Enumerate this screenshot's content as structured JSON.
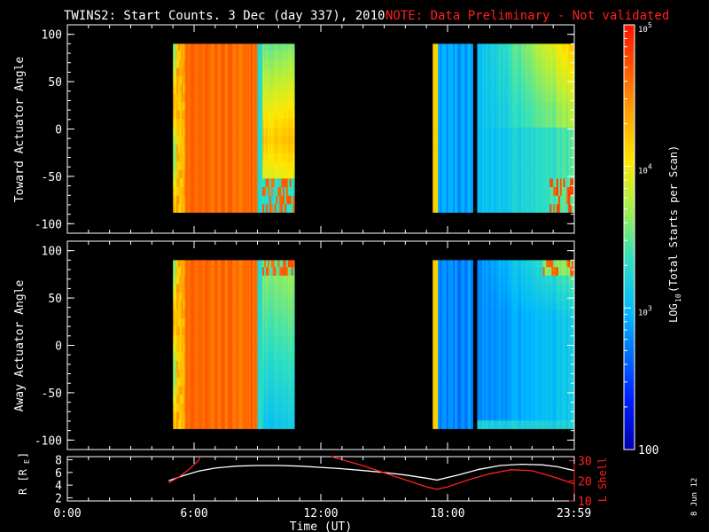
{
  "header": {
    "title": "TWINS2: Start Counts.  3 Dec (day 337), 2010",
    "note": "NOTE: Data Preliminary - Not validated"
  },
  "footer_date": "8 Jun 12",
  "colors": {
    "background": "#000000",
    "axes": "#ffffff",
    "note": "#ff2020",
    "r_line": "#ffffff",
    "lshell_line": "#ff2020"
  },
  "chart_data": [
    {
      "type": "heatmap",
      "id": "toward",
      "ylabel": "Toward Actuator Angle",
      "ylim": [
        -110,
        110
      ],
      "yticks": [
        {
          "value": 100,
          "label": "100"
        },
        {
          "value": 50,
          "label": "50"
        },
        {
          "value": 0,
          "label": "0"
        },
        {
          "value": -50,
          "label": "-50"
        },
        {
          "value": -100,
          "label": "-100"
        }
      ],
      "xlim_hours": [
        0,
        24
      ],
      "angle_range": [
        -88,
        90
      ],
      "data_segments_hours": [
        [
          5.0,
          10.75
        ],
        [
          17.3,
          19.2
        ],
        [
          19.4,
          24.0
        ]
      ]
    },
    {
      "type": "heatmap",
      "id": "away",
      "ylabel": "Away Actuator Angle",
      "ylim": [
        -110,
        110
      ],
      "yticks": [
        {
          "value": 100,
          "label": "100"
        },
        {
          "value": 50,
          "label": "50"
        },
        {
          "value": 0,
          "label": "0"
        },
        {
          "value": -50,
          "label": "-50"
        },
        {
          "value": -100,
          "label": "-100"
        }
      ],
      "xlim_hours": [
        0,
        24
      ],
      "angle_range": [
        -88,
        90
      ],
      "data_segments_hours": [
        [
          5.0,
          10.75
        ],
        [
          17.3,
          19.2
        ],
        [
          19.4,
          24.0
        ]
      ]
    },
    {
      "type": "line",
      "id": "orbit",
      "ylabel_left": "R [R",
      "ylabel_left_sub": "E",
      "ylabel_left_end": "]",
      "ylim_left": [
        1.5,
        8.5
      ],
      "yticks_left": [
        {
          "value": 2,
          "label": "2"
        },
        {
          "value": 4,
          "label": "4"
        },
        {
          "value": 6,
          "label": "6"
        },
        {
          "value": 8,
          "label": "8"
        }
      ],
      "ylabel_right": "L Shell",
      "ylim_right": [
        10,
        32
      ],
      "yticks_right": [
        {
          "value": 10,
          "label": "10"
        },
        {
          "value": 20,
          "label": "20"
        },
        {
          "value": 30,
          "label": "30"
        }
      ],
      "xlabel": "Time (UT)",
      "xticks": [
        {
          "value": 0,
          "label": "0:00"
        },
        {
          "value": 6,
          "label": "6:00"
        },
        {
          "value": 12,
          "label": "12:00"
        },
        {
          "value": 18,
          "label": "18:00"
        },
        {
          "value": 23.983,
          "label": "23:59"
        }
      ],
      "series": [
        {
          "axis": "left",
          "x": [
            4.8,
            5.5,
            6.2,
            7.0,
            8.0,
            9.0,
            10.0,
            11.0,
            12.0,
            13.0,
            14.0,
            15.0,
            16.0,
            17.0,
            17.5,
            18.5,
            19.5,
            20.5,
            21.5,
            22.5,
            23.2,
            24.0
          ],
          "y": [
            4.7,
            5.5,
            6.2,
            6.7,
            7.0,
            7.1,
            7.1,
            7.0,
            6.8,
            6.6,
            6.3,
            6.0,
            5.6,
            5.1,
            4.8,
            5.6,
            6.5,
            7.1,
            7.3,
            7.2,
            6.9,
            6.3
          ]
        },
        {
          "axis": "right",
          "x": [
            4.8,
            5.3,
            5.8,
            6.2,
            6.3
          ],
          "y": [
            19.0,
            22.0,
            26.0,
            30.0,
            32.0
          ]
        },
        {
          "axis": "right",
          "x": [
            12.5,
            13.0,
            14.0,
            15.0,
            16.0,
            17.0,
            17.5,
            18.0,
            19.0,
            20.0,
            21.0,
            22.0,
            23.0,
            24.0
          ],
          "y": [
            32.0,
            30.5,
            27.5,
            24.0,
            20.5,
            17.0,
            15.8,
            17.0,
            20.5,
            23.5,
            25.5,
            25.0,
            22.0,
            18.5
          ]
        }
      ]
    }
  ],
  "colorbar": {
    "label": "LOG10(Total Starts per Scan)",
    "label_main": "LOG",
    "label_sub": "10",
    "label_rest": "(Total Starts per Scan)",
    "min": 100,
    "max": 100000,
    "log_scale": true,
    "ticks": [
      {
        "value": 100,
        "base": "100",
        "exp": ""
      },
      {
        "value": 1000,
        "base": "10",
        "exp": "3"
      },
      {
        "value": 10000,
        "base": "10",
        "exp": "4"
      },
      {
        "value": 100000,
        "base": "10",
        "exp": "5"
      }
    ]
  }
}
